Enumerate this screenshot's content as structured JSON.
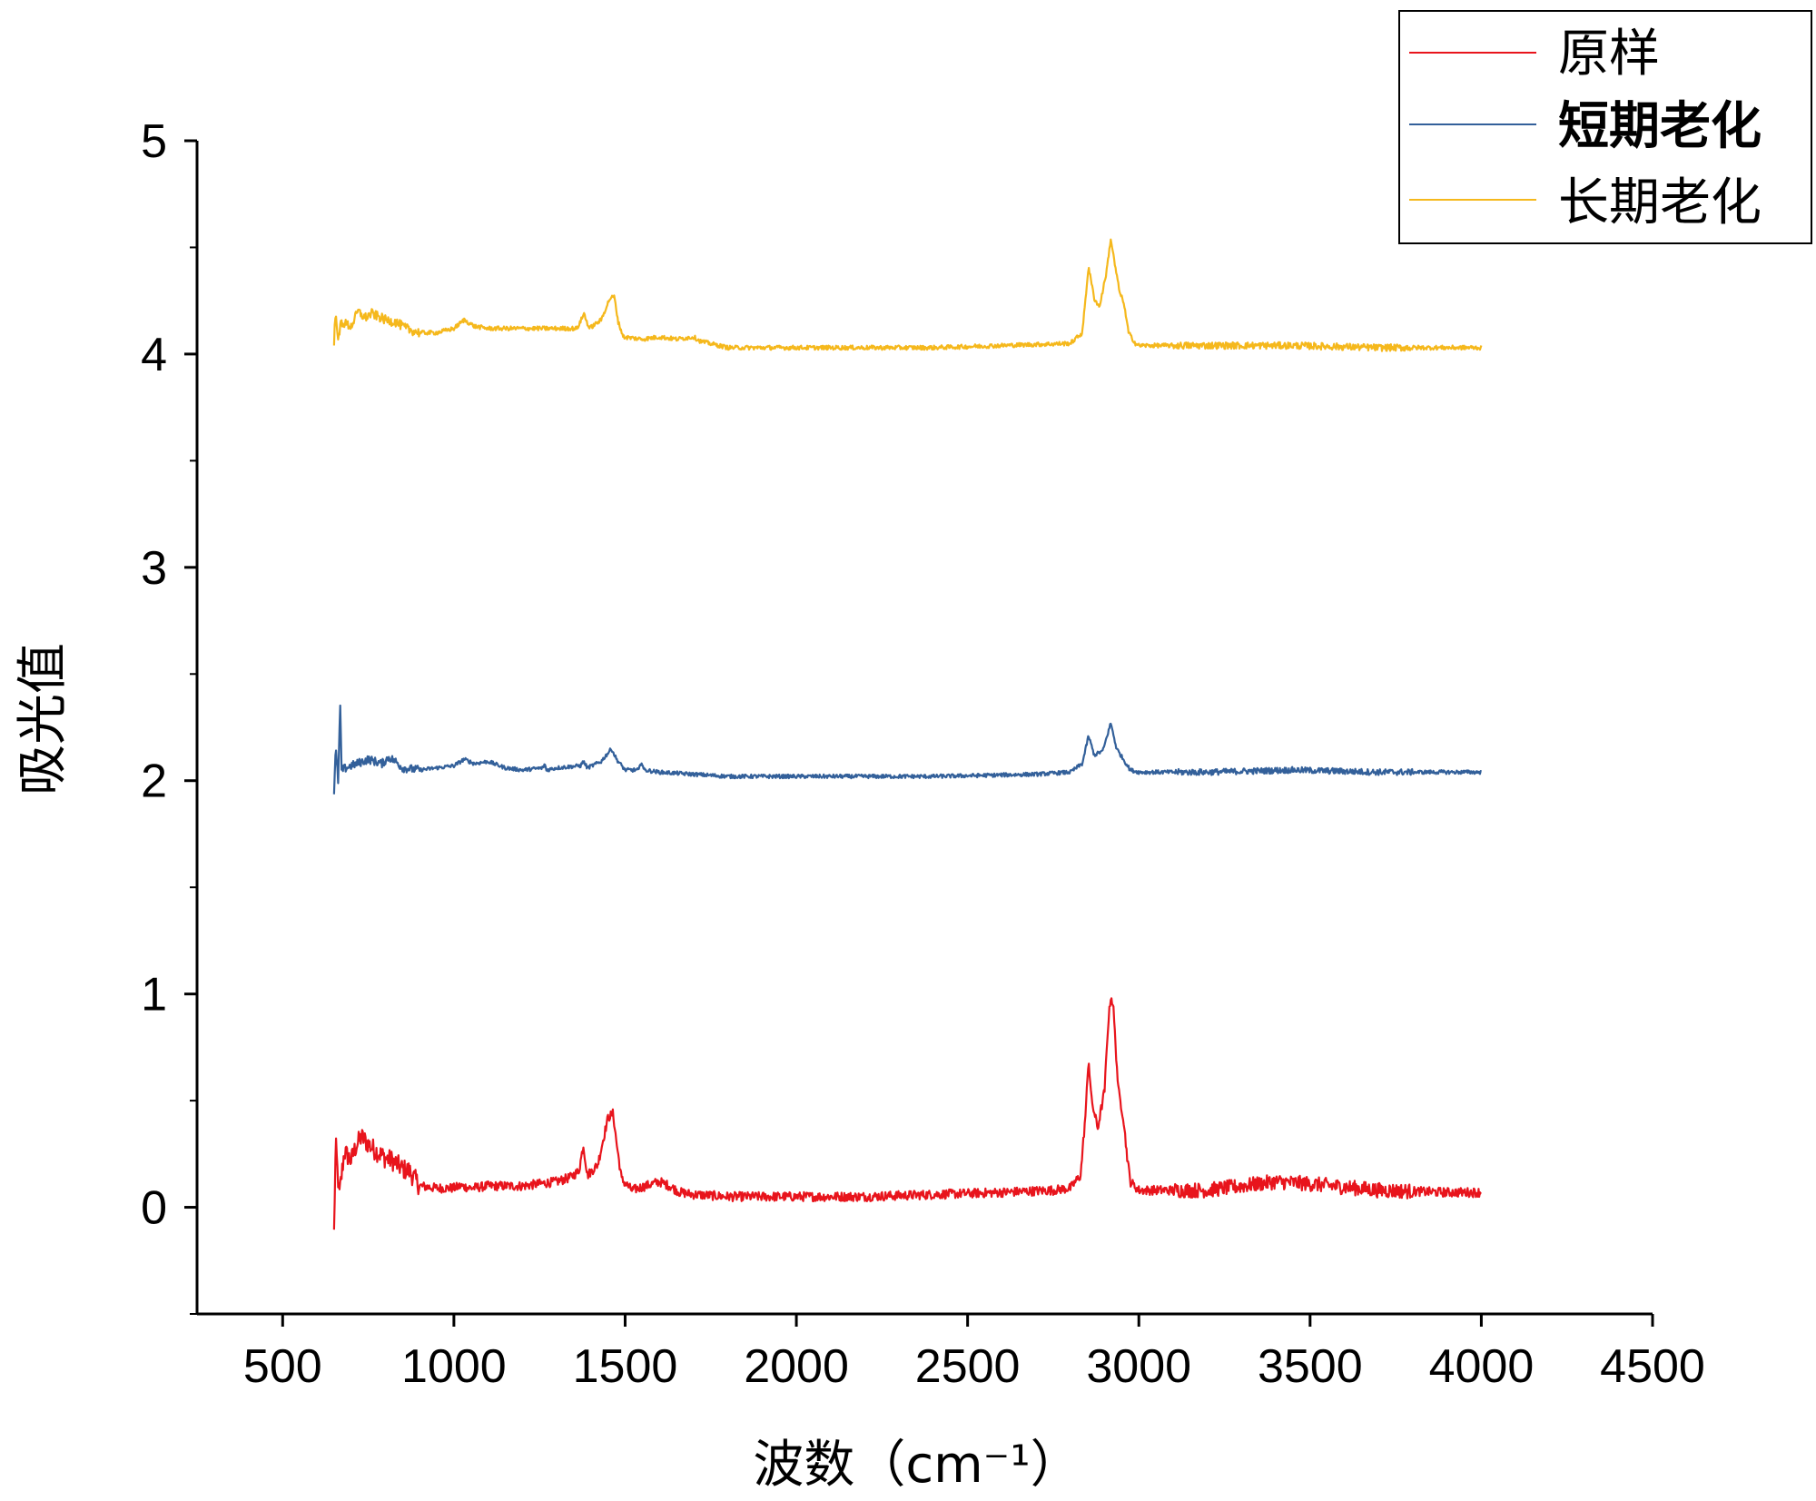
{
  "chart_data": {
    "type": "line",
    "xlabel": "波数（cm⁻¹）",
    "ylabel": "吸光值",
    "xlim": [
      250,
      4500
    ],
    "ylim": [
      -0.5,
      5
    ],
    "xticks": [
      500,
      1000,
      1500,
      2000,
      2500,
      3000,
      3500,
      4000,
      4500
    ],
    "yticks": [
      0,
      1,
      2,
      3,
      4,
      5
    ],
    "grid": false,
    "legend_position": "top-right",
    "series": [
      {
        "name": "原样",
        "color": "#e8141c",
        "noise": 0.022,
        "points": [
          [
            650,
            -0.12
          ],
          [
            655,
            0.3
          ],
          [
            665,
            0.05
          ],
          [
            680,
            0.26
          ],
          [
            700,
            0.22
          ],
          [
            715,
            0.29
          ],
          [
            730,
            0.33
          ],
          [
            760,
            0.28
          ],
          [
            800,
            0.23
          ],
          [
            820,
            0.22
          ],
          [
            850,
            0.18
          ],
          [
            870,
            0.17
          ],
          [
            900,
            0.1
          ],
          [
            950,
            0.09
          ],
          [
            1000,
            0.09
          ],
          [
            1020,
            0.1
          ],
          [
            1050,
            0.09
          ],
          [
            1100,
            0.1
          ],
          [
            1200,
            0.1
          ],
          [
            1300,
            0.12
          ],
          [
            1340,
            0.14
          ],
          [
            1365,
            0.17
          ],
          [
            1378,
            0.29
          ],
          [
            1390,
            0.15
          ],
          [
            1420,
            0.2
          ],
          [
            1450,
            0.42
          ],
          [
            1465,
            0.44
          ],
          [
            1475,
            0.3
          ],
          [
            1490,
            0.13
          ],
          [
            1520,
            0.08
          ],
          [
            1560,
            0.1
          ],
          [
            1600,
            0.12
          ],
          [
            1630,
            0.1
          ],
          [
            1660,
            0.07
          ],
          [
            1700,
            0.06
          ],
          [
            1800,
            0.05
          ],
          [
            2000,
            0.05
          ],
          [
            2200,
            0.05
          ],
          [
            2400,
            0.06
          ],
          [
            2600,
            0.07
          ],
          [
            2750,
            0.08
          ],
          [
            2800,
            0.09
          ],
          [
            2830,
            0.15
          ],
          [
            2845,
            0.45
          ],
          [
            2853,
            0.7
          ],
          [
            2862,
            0.5
          ],
          [
            2880,
            0.37
          ],
          [
            2900,
            0.55
          ],
          [
            2910,
            0.85
          ],
          [
            2918,
            0.99
          ],
          [
            2925,
            0.95
          ],
          [
            2940,
            0.55
          ],
          [
            2955,
            0.42
          ],
          [
            2965,
            0.25
          ],
          [
            2975,
            0.12
          ],
          [
            3000,
            0.08
          ],
          [
            3200,
            0.08
          ],
          [
            3400,
            0.12
          ],
          [
            3500,
            0.11
          ],
          [
            3700,
            0.08
          ],
          [
            3900,
            0.07
          ],
          [
            4000,
            0.07
          ]
        ]
      },
      {
        "name": "短期老化",
        "color": "#33609a",
        "noise": 0.009,
        "points": [
          [
            650,
            1.95
          ],
          [
            655,
            2.15
          ],
          [
            662,
            2.0
          ],
          [
            668,
            2.35
          ],
          [
            672,
            2.05
          ],
          [
            700,
            2.07
          ],
          [
            750,
            2.1
          ],
          [
            790,
            2.08
          ],
          [
            810,
            2.11
          ],
          [
            830,
            2.09
          ],
          [
            850,
            2.06
          ],
          [
            900,
            2.05
          ],
          [
            950,
            2.06
          ],
          [
            1000,
            2.07
          ],
          [
            1030,
            2.1
          ],
          [
            1060,
            2.08
          ],
          [
            1100,
            2.09
          ],
          [
            1150,
            2.06
          ],
          [
            1200,
            2.05
          ],
          [
            1260,
            2.06
          ],
          [
            1265,
            2.08
          ],
          [
            1270,
            2.05
          ],
          [
            1300,
            2.06
          ],
          [
            1370,
            2.07
          ],
          [
            1378,
            2.09
          ],
          [
            1390,
            2.06
          ],
          [
            1430,
            2.09
          ],
          [
            1460,
            2.15
          ],
          [
            1475,
            2.1
          ],
          [
            1500,
            2.05
          ],
          [
            1540,
            2.05
          ],
          [
            1548,
            2.09
          ],
          [
            1555,
            2.05
          ],
          [
            1600,
            2.04
          ],
          [
            1700,
            2.03
          ],
          [
            1800,
            2.02
          ],
          [
            2000,
            2.02
          ],
          [
            2400,
            2.02
          ],
          [
            2700,
            2.03
          ],
          [
            2800,
            2.04
          ],
          [
            2835,
            2.08
          ],
          [
            2853,
            2.21
          ],
          [
            2870,
            2.12
          ],
          [
            2895,
            2.14
          ],
          [
            2918,
            2.27
          ],
          [
            2935,
            2.15
          ],
          [
            2955,
            2.1
          ],
          [
            2975,
            2.05
          ],
          [
            3000,
            2.04
          ],
          [
            3200,
            2.04
          ],
          [
            3450,
            2.05
          ],
          [
            3700,
            2.04
          ],
          [
            4000,
            2.04
          ]
        ]
      },
      {
        "name": "长期老化",
        "color": "#f5b81c",
        "noise": 0.01,
        "points": [
          [
            650,
            4.05
          ],
          [
            655,
            4.22
          ],
          [
            662,
            4.05
          ],
          [
            670,
            4.15
          ],
          [
            700,
            4.13
          ],
          [
            720,
            4.2
          ],
          [
            740,
            4.17
          ],
          [
            760,
            4.19
          ],
          [
            800,
            4.16
          ],
          [
            830,
            4.15
          ],
          [
            860,
            4.12
          ],
          [
            900,
            4.1
          ],
          [
            950,
            4.1
          ],
          [
            1000,
            4.12
          ],
          [
            1030,
            4.16
          ],
          [
            1060,
            4.13
          ],
          [
            1100,
            4.12
          ],
          [
            1200,
            4.12
          ],
          [
            1300,
            4.12
          ],
          [
            1360,
            4.12
          ],
          [
            1380,
            4.19
          ],
          [
            1395,
            4.12
          ],
          [
            1430,
            4.16
          ],
          [
            1455,
            4.26
          ],
          [
            1468,
            4.27
          ],
          [
            1480,
            4.15
          ],
          [
            1495,
            4.08
          ],
          [
            1550,
            4.07
          ],
          [
            1600,
            4.08
          ],
          [
            1650,
            4.07
          ],
          [
            1700,
            4.08
          ],
          [
            1720,
            4.06
          ],
          [
            1800,
            4.03
          ],
          [
            2000,
            4.03
          ],
          [
            2400,
            4.03
          ],
          [
            2600,
            4.04
          ],
          [
            2800,
            4.05
          ],
          [
            2835,
            4.1
          ],
          [
            2853,
            4.41
          ],
          [
            2870,
            4.26
          ],
          [
            2885,
            4.22
          ],
          [
            2905,
            4.38
          ],
          [
            2918,
            4.54
          ],
          [
            2932,
            4.4
          ],
          [
            2945,
            4.28
          ],
          [
            2955,
            4.25
          ],
          [
            2970,
            4.1
          ],
          [
            2990,
            4.05
          ],
          [
            3000,
            4.04
          ],
          [
            3200,
            4.04
          ],
          [
            3450,
            4.04
          ],
          [
            3700,
            4.03
          ],
          [
            4000,
            4.03
          ]
        ]
      }
    ]
  }
}
